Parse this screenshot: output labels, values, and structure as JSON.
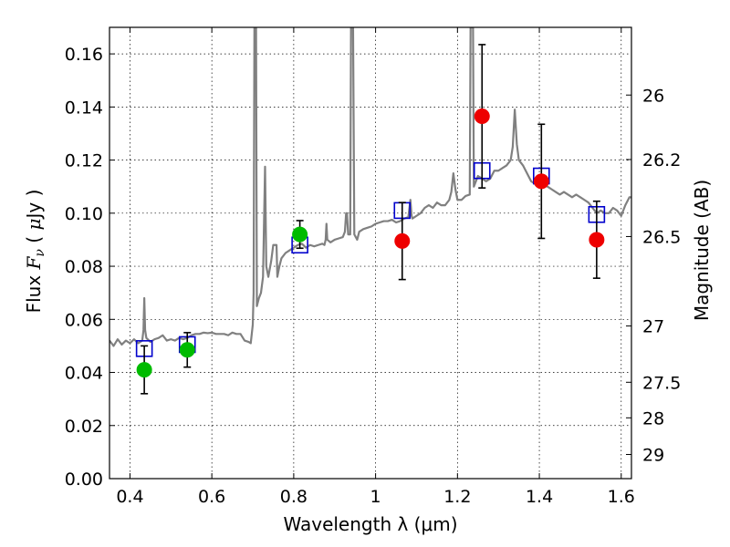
{
  "chart_data": {
    "type": "scatter",
    "xlabel": "Wavelength  λ (μm)",
    "ylabel_parts": [
      "Flux  ",
      "F",
      "ν",
      "  ( ",
      "μ",
      "Jy )"
    ],
    "y2label": "Magnitude (AB)",
    "xlim": [
      0.35,
      1.625
    ],
    "ylim": [
      0,
      0.17
    ],
    "x_ticks": [
      0.4,
      0.6,
      0.8,
      1.0,
      1.2,
      1.4,
      1.6
    ],
    "x_tick_labels": [
      "0.4",
      "0.6",
      "0.8",
      "1",
      "1.2",
      "1.4",
      "1.6"
    ],
    "y_ticks": [
      0,
      0.02,
      0.04,
      0.06,
      0.08,
      0.1,
      0.12,
      0.14,
      0.16
    ],
    "y_tick_labels": [
      "0.00",
      "0.02",
      "0.04",
      "0.06",
      "0.08",
      "0.10",
      "0.12",
      "0.14",
      "0.16"
    ],
    "y2_ticks": [
      {
        "label": "26",
        "flux": 0.1445
      },
      {
        "label": "26.2",
        "flux": 0.1202
      },
      {
        "label": "26.5",
        "flux": 0.0912
      },
      {
        "label": "27",
        "flux": 0.0575
      },
      {
        "label": "27.5",
        "flux": 0.0363
      },
      {
        "label": "28",
        "flux": 0.0229
      },
      {
        "label": "29",
        "flux": 0.0091
      }
    ],
    "grid": true,
    "series": [
      {
        "name": "model spectrum",
        "kind": "line",
        "color": "#808080",
        "points": [
          [
            0.35,
            0.052
          ],
          [
            0.36,
            0.05
          ],
          [
            0.37,
            0.0525
          ],
          [
            0.38,
            0.0505
          ],
          [
            0.39,
            0.052
          ],
          [
            0.4,
            0.051
          ],
          [
            0.41,
            0.0525
          ],
          [
            0.42,
            0.051
          ],
          [
            0.425,
            0.0515
          ],
          [
            0.43,
            0.052
          ],
          [
            0.433,
            0.056
          ],
          [
            0.435,
            0.068
          ],
          [
            0.437,
            0.056
          ],
          [
            0.44,
            0.053
          ],
          [
            0.45,
            0.0515
          ],
          [
            0.46,
            0.0525
          ],
          [
            0.47,
            0.053
          ],
          [
            0.48,
            0.054
          ],
          [
            0.49,
            0.052
          ],
          [
            0.5,
            0.0525
          ],
          [
            0.51,
            0.052
          ],
          [
            0.52,
            0.053
          ],
          [
            0.53,
            0.0525
          ],
          [
            0.54,
            0.053
          ],
          [
            0.55,
            0.054
          ],
          [
            0.56,
            0.0545
          ],
          [
            0.57,
            0.0545
          ],
          [
            0.58,
            0.055
          ],
          [
            0.59,
            0.0548
          ],
          [
            0.6,
            0.055
          ],
          [
            0.61,
            0.0545
          ],
          [
            0.62,
            0.0545
          ],
          [
            0.63,
            0.0545
          ],
          [
            0.64,
            0.054
          ],
          [
            0.65,
            0.055
          ],
          [
            0.66,
            0.0545
          ],
          [
            0.67,
            0.0545
          ],
          [
            0.68,
            0.052
          ],
          [
            0.69,
            0.0515
          ],
          [
            0.695,
            0.051
          ],
          [
            0.7,
            0.058
          ],
          [
            0.702,
            0.07
          ],
          [
            0.704,
            0.17
          ],
          [
            0.708,
            0.17
          ],
          [
            0.71,
            0.065
          ],
          [
            0.715,
            0.068
          ],
          [
            0.72,
            0.07
          ],
          [
            0.725,
            0.076
          ],
          [
            0.73,
            0.1175
          ],
          [
            0.733,
            0.08
          ],
          [
            0.738,
            0.076
          ],
          [
            0.745,
            0.082
          ],
          [
            0.75,
            0.088
          ],
          [
            0.758,
            0.088
          ],
          [
            0.76,
            0.076
          ],
          [
            0.765,
            0.08
          ],
          [
            0.77,
            0.083
          ],
          [
            0.78,
            0.085
          ],
          [
            0.79,
            0.086
          ],
          [
            0.8,
            0.087
          ],
          [
            0.81,
            0.088
          ],
          [
            0.82,
            0.0885
          ],
          [
            0.83,
            0.087
          ],
          [
            0.84,
            0.088
          ],
          [
            0.85,
            0.0875
          ],
          [
            0.86,
            0.088
          ],
          [
            0.87,
            0.0885
          ],
          [
            0.875,
            0.088
          ],
          [
            0.878,
            0.09
          ],
          [
            0.88,
            0.096
          ],
          [
            0.882,
            0.09
          ],
          [
            0.89,
            0.089
          ],
          [
            0.9,
            0.09
          ],
          [
            0.91,
            0.0905
          ],
          [
            0.92,
            0.091
          ],
          [
            0.925,
            0.093
          ],
          [
            0.928,
            0.1
          ],
          [
            0.93,
            0.1
          ],
          [
            0.933,
            0.092
          ],
          [
            0.938,
            0.092
          ],
          [
            0.94,
            0.17
          ],
          [
            0.945,
            0.17
          ],
          [
            0.948,
            0.092
          ],
          [
            0.955,
            0.09
          ],
          [
            0.96,
            0.093
          ],
          [
            0.97,
            0.094
          ],
          [
            0.98,
            0.0945
          ],
          [
            0.99,
            0.095
          ],
          [
            1.0,
            0.096
          ],
          [
            1.01,
            0.0965
          ],
          [
            1.02,
            0.097
          ],
          [
            1.03,
            0.097
          ],
          [
            1.04,
            0.0975
          ],
          [
            1.05,
            0.0965
          ],
          [
            1.06,
            0.097
          ],
          [
            1.07,
            0.098
          ],
          [
            1.08,
            0.0985
          ],
          [
            1.085,
            0.105
          ],
          [
            1.088,
            0.099
          ],
          [
            1.09,
            0.098
          ],
          [
            1.1,
            0.099
          ],
          [
            1.11,
            0.1
          ],
          [
            1.12,
            0.102
          ],
          [
            1.13,
            0.103
          ],
          [
            1.14,
            0.102
          ],
          [
            1.15,
            0.104
          ],
          [
            1.16,
            0.103
          ],
          [
            1.17,
            0.103
          ],
          [
            1.18,
            0.105
          ],
          [
            1.185,
            0.108
          ],
          [
            1.19,
            0.115
          ],
          [
            1.195,
            0.109
          ],
          [
            1.2,
            0.105
          ],
          [
            1.21,
            0.105
          ],
          [
            1.22,
            0.1065
          ],
          [
            1.23,
            0.107
          ],
          [
            1.232,
            0.17
          ],
          [
            1.238,
            0.17
          ],
          [
            1.24,
            0.11
          ],
          [
            1.25,
            0.114
          ],
          [
            1.26,
            0.113
          ],
          [
            1.27,
            0.112
          ],
          [
            1.28,
            0.113
          ],
          [
            1.29,
            0.116
          ],
          [
            1.3,
            0.116
          ],
          [
            1.31,
            0.117
          ],
          [
            1.32,
            0.118
          ],
          [
            1.33,
            0.12
          ],
          [
            1.335,
            0.125
          ],
          [
            1.34,
            0.139
          ],
          [
            1.345,
            0.126
          ],
          [
            1.35,
            0.12
          ],
          [
            1.36,
            0.118
          ],
          [
            1.37,
            0.115
          ],
          [
            1.38,
            0.112
          ],
          [
            1.39,
            0.111
          ],
          [
            1.4,
            0.112
          ],
          [
            1.41,
            0.111
          ],
          [
            1.42,
            0.11
          ],
          [
            1.43,
            0.109
          ],
          [
            1.44,
            0.108
          ],
          [
            1.45,
            0.107
          ],
          [
            1.46,
            0.108
          ],
          [
            1.47,
            0.107
          ],
          [
            1.48,
            0.106
          ],
          [
            1.49,
            0.107
          ],
          [
            1.5,
            0.106
          ],
          [
            1.51,
            0.105
          ],
          [
            1.52,
            0.104
          ],
          [
            1.53,
            0.102
          ],
          [
            1.54,
            0.1
          ],
          [
            1.55,
            0.101
          ],
          [
            1.56,
            0.1
          ],
          [
            1.57,
            0.1
          ],
          [
            1.58,
            0.102
          ],
          [
            1.59,
            0.101
          ],
          [
            1.6,
            0.099
          ],
          [
            1.61,
            0.103
          ],
          [
            1.62,
            0.106
          ],
          [
            1.625,
            0.106
          ]
        ]
      },
      {
        "name": "model band flux",
        "kind": "open-square",
        "color": "#0000cc",
        "points": [
          [
            0.435,
            0.049
          ],
          [
            0.54,
            0.0505
          ],
          [
            0.815,
            0.088
          ],
          [
            1.065,
            0.101
          ],
          [
            1.26,
            0.116
          ],
          [
            1.405,
            0.114
          ],
          [
            1.54,
            0.0995
          ]
        ]
      },
      {
        "name": "observed (green)",
        "kind": "filled-circle",
        "color": "#00bb00",
        "points": [
          {
            "x": 0.435,
            "y": 0.041,
            "err": 0.009
          },
          {
            "x": 0.54,
            "y": 0.0485,
            "err": 0.0065
          },
          {
            "x": 0.815,
            "y": 0.092,
            "err": 0.0052
          }
        ]
      },
      {
        "name": "observed (red)",
        "kind": "filled-circle",
        "color": "#ee0000",
        "points": [
          {
            "x": 1.065,
            "y": 0.0895,
            "err": 0.0145
          },
          {
            "x": 1.26,
            "y": 0.1365,
            "err": 0.027
          },
          {
            "x": 1.405,
            "y": 0.112,
            "err": 0.0215
          },
          {
            "x": 1.54,
            "y": 0.09,
            "err": 0.0145
          }
        ]
      }
    ]
  }
}
